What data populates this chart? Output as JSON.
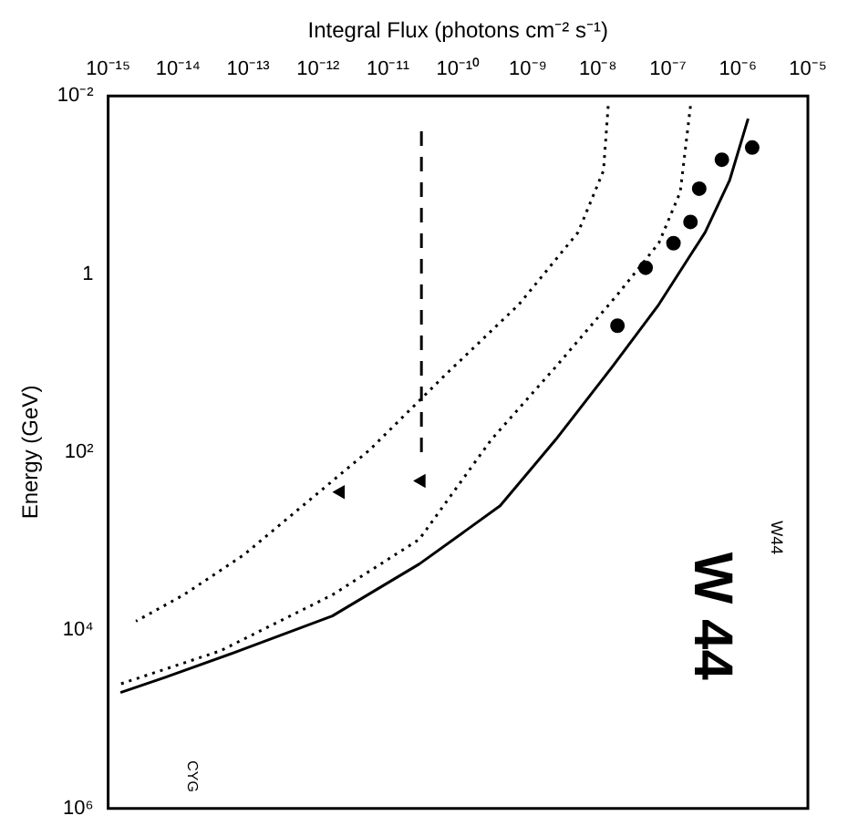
{
  "chart_data": {
    "type": "line",
    "xlabel": "Integral Flux (photons cm⁻² s⁻¹)",
    "ylabel": "Energy (GeV)",
    "log": "xy",
    "grid": false,
    "legend": false,
    "xlim": [
      1e-15,
      1e-05
    ],
    "ylim": [
      1000000.0,
      0.01
    ],
    "xticks": [
      {
        "value": 1e-15,
        "label": "10⁻¹⁵"
      },
      {
        "value": 1e-14,
        "label": "10⁻¹⁴"
      },
      {
        "value": 1e-13,
        "label": "10⁻¹³"
      },
      {
        "value": 1e-12,
        "label": "10⁻¹²"
      },
      {
        "value": 1e-11,
        "label": "10⁻¹¹"
      },
      {
        "value": 1e-10,
        "label": "10⁻¹⁰"
      },
      {
        "value": 1e-09,
        "label": "10⁻⁹"
      },
      {
        "value": 1e-08,
        "label": "10⁻⁸"
      },
      {
        "value": 1e-07,
        "label": "10⁻⁷"
      },
      {
        "value": 1e-06,
        "label": "10⁻⁶"
      },
      {
        "value": 1e-05,
        "label": "10⁻⁵"
      }
    ],
    "yticks": [
      {
        "value": 0.01,
        "label": "10⁻²"
      },
      1,
      {
        "value": 100,
        "label": "10²"
      },
      {
        "value": 10000,
        "label": "10⁴"
      },
      {
        "value": 1000000,
        "label": "10⁶"
      }
    ],
    "annotations": [
      "W44",
      "W 44",
      "CYG"
    ],
    "series": [
      {
        "type": "line",
        "line_style": "solid",
        "marker": "none",
        "color": "#000000",
        "x": [
          1.4e-06,
          7.6e-07,
          3.4e-07,
          7.4e-08,
          1.6e-08,
          2.5e-09,
          4e-10,
          2.8e-11,
          1.6e-12,
          7.4e-14,
          6.3e-15,
          1.5e-15
        ],
        "values": [
          0.018,
          0.089,
          0.34,
          2.2,
          11,
          72,
          400,
          1800,
          6900,
          17000,
          34000,
          50000
        ]
      },
      {
        "type": "line",
        "line_style": "dotted",
        "marker": "none",
        "color": "#000000",
        "x": [
          1.4e-08,
          1.2e-08,
          5.2e-09,
          7.4e-10,
          6.3e-11,
          5.4e-12,
          4.7e-13,
          8.9e-14,
          1.2e-14,
          2.5e-15
        ],
        "values": [
          0.013,
          0.069,
          0.34,
          2.2,
          14,
          95,
          470,
          1400,
          4000,
          7900
        ]
      },
      {
        "type": "line",
        "line_style": "dotted",
        "marker": "none",
        "color": "#000000",
        "x": [
          2.1e-07,
          1.5e-07,
          7.4e-08,
          1.9e-08,
          2.5e-09,
          3e-10,
          2.8e-11,
          1.6e-12,
          4e-14,
          1.5e-15
        ],
        "values": [
          0.013,
          0.12,
          0.45,
          1.7,
          11,
          72,
          950,
          4000,
          17000,
          40000
        ]
      },
      {
        "type": "line",
        "line_style": "dashed",
        "marker": "none",
        "color": "#000000",
        "x": [
          3e-11,
          3e-11
        ],
        "values": [
          0.025,
          100
        ]
      },
      {
        "type": "scatter",
        "marker": "circle",
        "color": "#000000",
        "x": [
          1.6e-06,
          5.9e-07,
          2.8e-07,
          2.1e-07,
          1.2e-07,
          4.8e-08,
          1.9e-08
        ],
        "values": [
          0.038,
          0.052,
          0.11,
          0.26,
          0.45,
          0.85,
          3.8
        ]
      },
      {
        "type": "scatter",
        "marker": "triangle",
        "color": "#000000",
        "x": [
          3e-11,
          2.1e-12
        ],
        "values": [
          210,
          280
        ]
      }
    ]
  }
}
